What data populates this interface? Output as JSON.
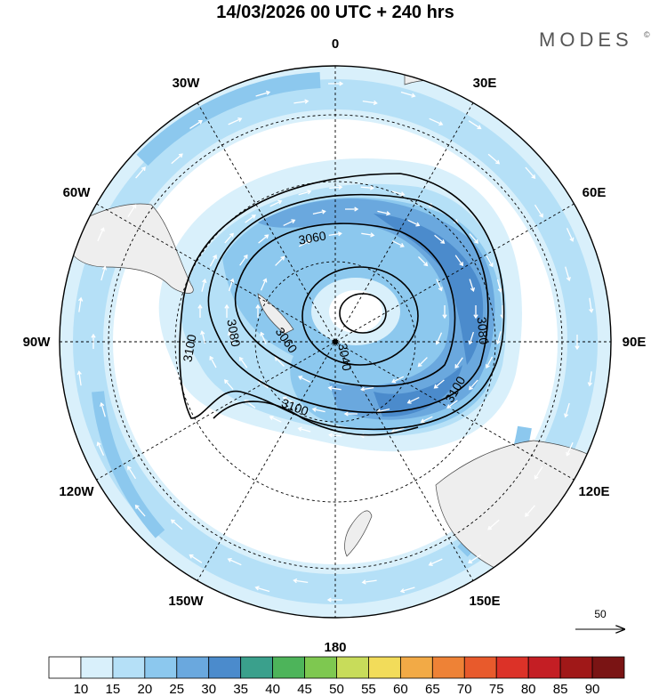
{
  "header": {
    "title": "14/03/2026  00 UTC  + 240 hrs",
    "brand": "MODES",
    "brand_mark": "©"
  },
  "map": {
    "projection": "south-polar-stereographic",
    "longitude_labels": [
      {
        "text": "0",
        "lon": 0
      },
      {
        "text": "30E",
        "lon": 30
      },
      {
        "text": "60E",
        "lon": 60
      },
      {
        "text": "90E",
        "lon": 90
      },
      {
        "text": "120E",
        "lon": 120
      },
      {
        "text": "150E",
        "lon": 150
      },
      {
        "text": "180",
        "lon": 180
      },
      {
        "text": "150W",
        "lon": -150
      },
      {
        "text": "120W",
        "lon": -120
      },
      {
        "text": "90W",
        "lon": -90
      },
      {
        "text": "60W",
        "lon": -60
      },
      {
        "text": "30W",
        "lon": -30
      }
    ],
    "latitude_circles": [
      -30,
      -50,
      -70
    ],
    "contour_labels": [
      "3060",
      "3080",
      "3060",
      "3040",
      "3100",
      "3100",
      "3080",
      "3100"
    ],
    "wind_reference": {
      "value": "50"
    }
  },
  "colorbar": {
    "labels": [
      "10",
      "15",
      "20",
      "25",
      "30",
      "35",
      "40",
      "45",
      "50",
      "55",
      "60",
      "65",
      "70",
      "75",
      "80",
      "85",
      "90"
    ],
    "colors": [
      "#ffffff",
      "#d9f0fb",
      "#b5e0f7",
      "#8cc8ee",
      "#6aa8de",
      "#4b8bcc",
      "#3aa08c",
      "#4db45a",
      "#7ec850",
      "#c8dc5a",
      "#f2dc5a",
      "#f2aa46",
      "#ee8236",
      "#e85a2c",
      "#dc3228",
      "#c41e24",
      "#a01818",
      "#7a1414"
    ]
  },
  "palette": {
    "land": "#eeeeee",
    "wind_light": "#d9f0fb",
    "wind_mid": "#b5e0f7",
    "wind_strong": "#8cc8ee",
    "wind_stronger": "#6aa8de",
    "wind_core": "#4b8bcc"
  }
}
